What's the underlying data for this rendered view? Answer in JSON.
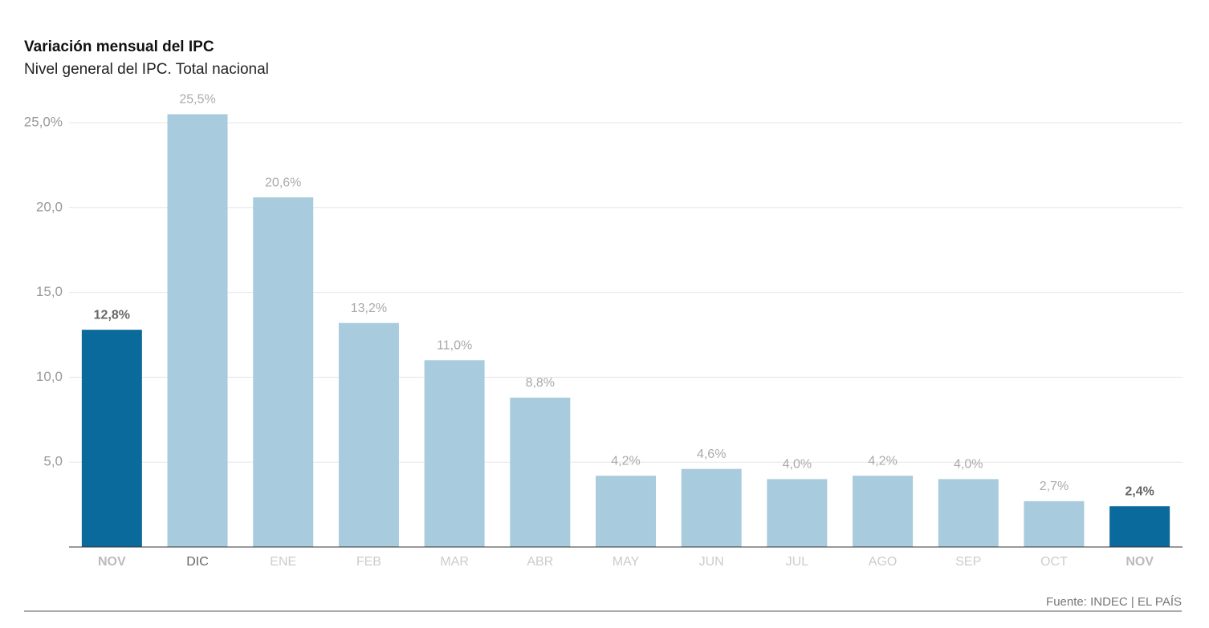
{
  "chart_data": {
    "type": "bar",
    "title": "Variación mensual del IPC",
    "subtitle": "Nivel general del IPC. Total nacional",
    "categories": [
      "NOV",
      "DIC",
      "ENE",
      "FEB",
      "MAR",
      "ABR",
      "MAY",
      "JUN",
      "JUL",
      "AGO",
      "SEP",
      "OCT",
      "NOV"
    ],
    "values": [
      12.8,
      25.5,
      20.6,
      13.2,
      11.0,
      8.8,
      4.2,
      4.6,
      4.0,
      4.2,
      4.0,
      2.7,
      2.4
    ],
    "value_labels": [
      "12,8%",
      "25,5%",
      "20,6%",
      "13,2%",
      "11,0%",
      "8,8%",
      "4,2%",
      "4,6%",
      "4,0%",
      "4,2%",
      "4,0%",
      "2,7%",
      "2,4%"
    ],
    "colors": [
      "#0a6a9c",
      "#a8cbdd",
      "#a8cbdd",
      "#a8cbdd",
      "#a8cbdd",
      "#a8cbdd",
      "#a8cbdd",
      "#a8cbdd",
      "#a8cbdd",
      "#a8cbdd",
      "#a8cbdd",
      "#a8cbdd",
      "#0a6a9c"
    ],
    "highlight_color": "#0a6a9c",
    "ylim": [
      0,
      26
    ],
    "yticks": [
      {
        "value": 5,
        "label": "5,0"
      },
      {
        "value": 10,
        "label": "10,0"
      },
      {
        "value": 15,
        "label": "15,0"
      },
      {
        "value": 20,
        "label": "20,0"
      },
      {
        "value": 25,
        "label": "25,0%"
      }
    ],
    "grid": true,
    "source": "Fuente: INDEC | EL PAÍS"
  }
}
